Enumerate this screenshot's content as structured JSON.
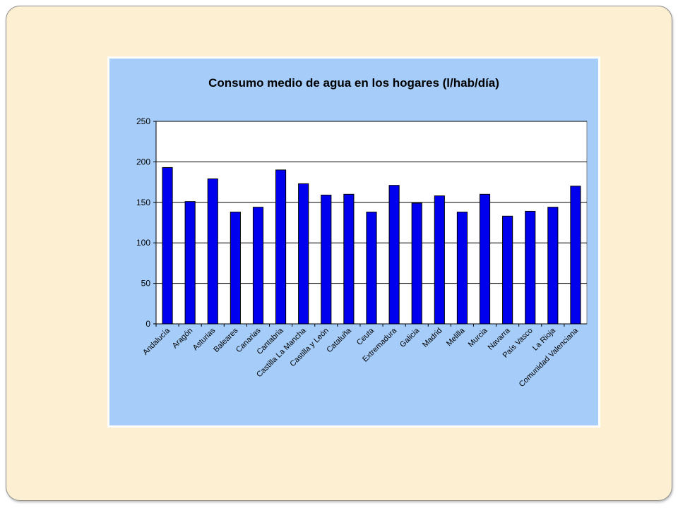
{
  "chart_data": {
    "type": "bar",
    "title": "Consumo medio de agua en los hogares (l/hab/día)",
    "categories": [
      "Andalucía",
      "Aragón",
      "Asturias",
      "Baleares",
      "Canarias",
      "Cantabria",
      "Castilla La Mancha",
      "Castilla y León",
      "Cataluña",
      "Ceuta",
      "Extremadura",
      "Galicia",
      "Madrid",
      "Melilla",
      "Murcia",
      "Navarra",
      "País Vasco",
      "La Rioja",
      "Comunidad Valenciana"
    ],
    "values": [
      193,
      151,
      179,
      138,
      144,
      190,
      173,
      159,
      160,
      138,
      171,
      149,
      158,
      138,
      160,
      133,
      139,
      144,
      170
    ],
    "ylim": [
      0,
      250
    ],
    "yticks": [
      0,
      50,
      100,
      150,
      200,
      250
    ],
    "grid": true,
    "legend": "none",
    "colors": {
      "bar": "#0000ee",
      "plot_bg": "#ffffff",
      "frame_bg": "#a6cdf9",
      "slide_bg": "#fdf0d2"
    }
  }
}
